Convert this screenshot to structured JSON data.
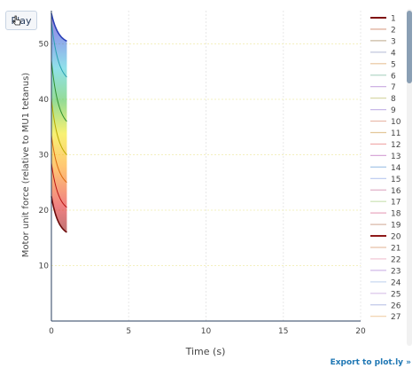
{
  "controls": {
    "play_label": "Play",
    "export_label": "Export to plot.ly »"
  },
  "chart_data": {
    "type": "line",
    "title": "",
    "xlabel": "Time (s)",
    "ylabel": "Motor unit force (relative to MU1 tetanus)",
    "xlim": [
      0,
      20
    ],
    "ylim": [
      0,
      56
    ],
    "xticks": [
      0,
      5,
      10,
      15,
      20
    ],
    "yticks": [
      10,
      20,
      30,
      40,
      50
    ],
    "grid": true,
    "legend_position": "right",
    "legend_visible_entries": [
      "1",
      "2",
      "3",
      "4",
      "5",
      "6",
      "7",
      "8",
      "9",
      "10",
      "11",
      "12",
      "13",
      "14",
      "15",
      "16",
      "17",
      "18",
      "19",
      "20",
      "21",
      "22",
      "23",
      "24",
      "25",
      "26",
      "27"
    ],
    "highlighted_series": [
      "1",
      "20"
    ],
    "x_range_drawn": [
      0,
      1
    ],
    "envelope_start_values": [
      22.5,
      28.5,
      33.5,
      40,
      47,
      54
    ],
    "envelope_end_values": [
      16,
      20.5,
      25,
      30,
      36,
      44,
      50.5
    ],
    "top_curve": {
      "start": 55.5,
      "end": 50.5
    },
    "bottom_curve": {
      "start": 22.5,
      "end": 16
    }
  },
  "colors": {
    "plot_border": "#2a3f5f",
    "grid": "#e8e8e8",
    "grid_yellow": "#f3f0c0",
    "legend_dark": "#7f1010"
  }
}
